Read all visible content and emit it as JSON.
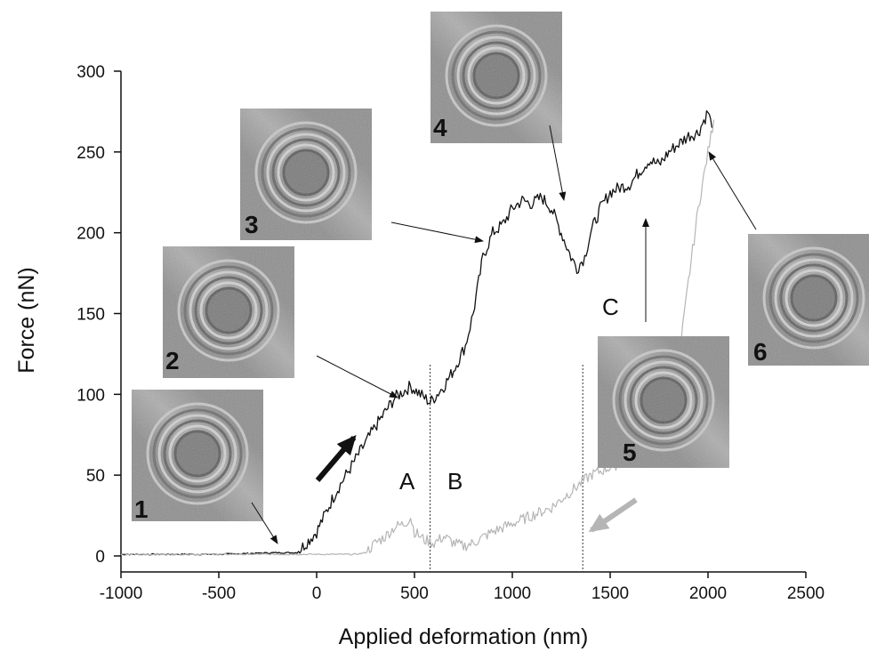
{
  "chart_data": {
    "type": "line",
    "title": "",
    "xlabel": "Applied deformation (nm)",
    "ylabel": "Force (nN)",
    "xlim": [
      -1000,
      2500
    ],
    "ylim": [
      0,
      300
    ],
    "x_ticks": [
      "-1000",
      "-500",
      "0",
      "500",
      "1000",
      "1500",
      "2000",
      "2500"
    ],
    "y_ticks": [
      "0",
      "50",
      "100",
      "150",
      "200",
      "250",
      "300"
    ],
    "grid": false,
    "series": [
      {
        "color": "#111111",
        "x": [
          -1000,
          -500,
          -200,
          -100,
          0,
          100,
          200,
          300,
          400,
          480,
          530,
          580,
          650,
          700,
          760,
          800,
          850,
          900,
          950,
          1000,
          1050,
          1100,
          1150,
          1200,
          1250,
          1300,
          1330,
          1370,
          1400,
          1450,
          1500,
          1550,
          1600,
          1650,
          1700,
          1750,
          1800,
          1850,
          1900,
          1950,
          2000,
          2020
        ],
        "y": [
          1,
          1,
          2,
          2,
          15,
          40,
          60,
          80,
          98,
          105,
          100,
          95,
          105,
          115,
          130,
          150,
          185,
          200,
          205,
          215,
          220,
          218,
          222,
          215,
          200,
          185,
          178,
          185,
          200,
          215,
          225,
          228,
          230,
          238,
          245,
          242,
          250,
          255,
          260,
          262,
          275,
          265
        ]
      },
      {
        "color": "#b5b5b5",
        "x": [
          -1000,
          0,
          200,
          250,
          300,
          350,
          400,
          450,
          480,
          500,
          550,
          600,
          650,
          700,
          750,
          800,
          900,
          1000,
          1100,
          1200,
          1300,
          1400,
          1500,
          1600,
          1700,
          1800,
          1850,
          1900,
          1950,
          2000,
          2030
        ],
        "y": [
          1,
          1,
          1,
          2,
          8,
          12,
          18,
          20,
          24,
          15,
          10,
          8,
          12,
          8,
          6,
          8,
          15,
          20,
          25,
          30,
          40,
          50,
          55,
          60,
          68,
          90,
          120,
          170,
          215,
          250,
          270
        ]
      }
    ],
    "annotations": {
      "regions": [
        "A",
        "B",
        "C"
      ],
      "boundaries_x": [
        580,
        1360
      ],
      "panel_numbers": [
        "1",
        "2",
        "3",
        "4",
        "5",
        "6"
      ]
    }
  }
}
